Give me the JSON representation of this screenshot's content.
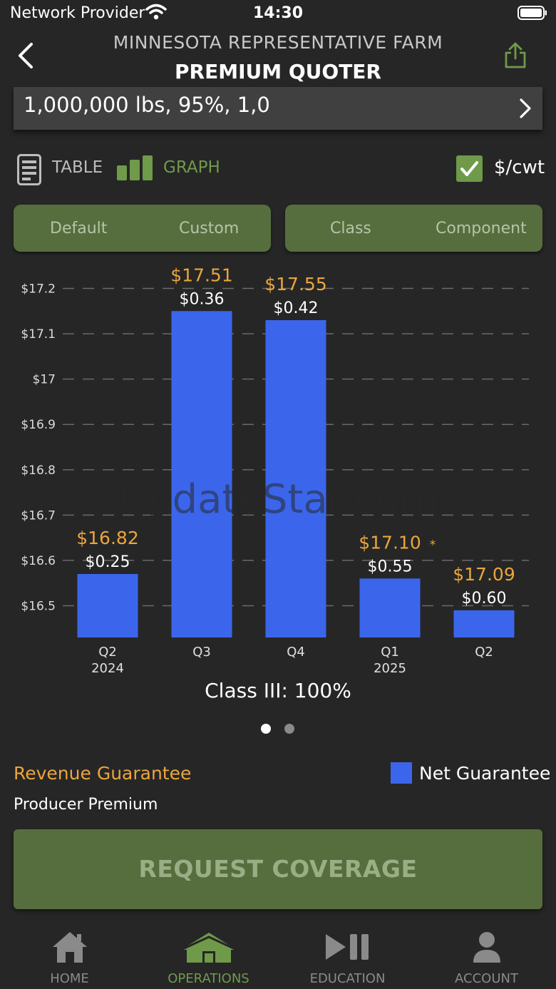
{
  "status_bar": {
    "carrier": "Network Provider",
    "time": "14:30"
  },
  "header": {
    "farm_name": "MINNESOTA REPRESENTATIVE FARM",
    "title": "PREMIUM QUOTER"
  },
  "selector": {
    "summary": "1,000,000 lbs, 95%, 1,0"
  },
  "view_toggle": {
    "table_label": "TABLE",
    "graph_label": "GRAPH",
    "active": "graph"
  },
  "units": {
    "label": "$/cwt",
    "checked": true
  },
  "segments": {
    "pricing": {
      "options": [
        "Default",
        "Custom"
      ]
    },
    "type": {
      "options": [
        "Class",
        "Component"
      ]
    }
  },
  "colors": {
    "accent_green": "#6f9a4a",
    "bar_blue": "#3b66ec",
    "label_orange": "#eaa63c",
    "background": "#262626"
  },
  "chart_data": {
    "type": "bar",
    "categories": [
      "Q2 2024",
      "Q3",
      "Q4",
      "Q1 2025",
      "Q2"
    ],
    "category_lines": [
      [
        "Q2",
        "2024"
      ],
      [
        "Q3"
      ],
      [
        "Q4"
      ],
      [
        "Q1",
        "2025"
      ],
      [
        "Q2"
      ]
    ],
    "values": [
      16.57,
      17.15,
      17.13,
      16.56,
      16.49
    ],
    "revenue_labels": [
      "$16.82",
      "$17.51",
      "$17.55",
      "$17.10",
      "$17.09"
    ],
    "premium_labels": [
      "$0.25",
      "$0.36",
      "$0.42",
      "$0.55",
      "$0.60"
    ],
    "annotation": {
      "category_index": 3,
      "text": "*"
    },
    "y_ticks": [
      16.5,
      16.6,
      16.7,
      16.8,
      16.9,
      17,
      17.1,
      17.2
    ],
    "y_tick_labels": [
      "$16.5",
      "$16.6",
      "$16.7",
      "$16.8",
      "$16.9",
      "$17",
      "$17.1",
      "$17.2"
    ],
    "ylim": [
      16.43,
      17.27
    ],
    "grid": "dashed horizontal",
    "legend": {
      "entries": [
        "Net Guarantee"
      ],
      "placement": "bottom-right"
    },
    "caption": "Class III: 100%"
  },
  "watermark": "UpdateStar.com",
  "pagination": {
    "pages": 2,
    "current": 0
  },
  "legend": {
    "revenue": "Revenue Guarantee",
    "net": "Net Guarantee",
    "producer": "Producer Premium"
  },
  "actions": {
    "request_label": "REQUEST COVERAGE"
  },
  "tabs": [
    {
      "label": "HOME",
      "icon": "home-icon"
    },
    {
      "label": "OPERATIONS",
      "icon": "operations-icon"
    },
    {
      "label": "EDUCATION",
      "icon": "play-pause-icon"
    },
    {
      "label": "ACCOUNT",
      "icon": "account-icon"
    }
  ],
  "active_tab": 1
}
